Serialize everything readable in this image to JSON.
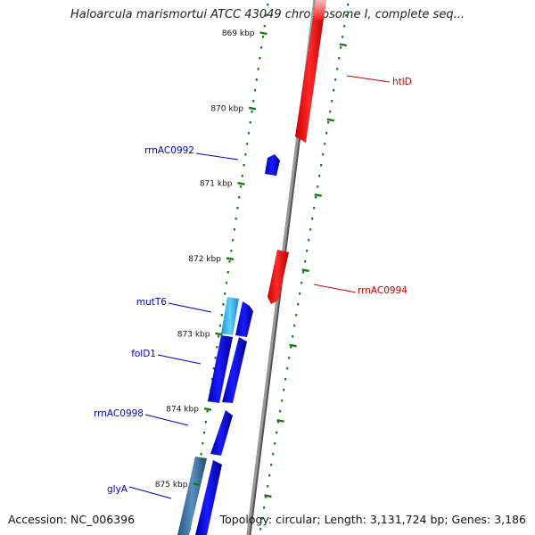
{
  "title": "Haloarcula marismortui ATCC 43049 chromosome I, complete seq...",
  "footer": {
    "accession": "Accession: NC_006396",
    "summary": "Topology: circular; Length: 3,131,724 bp; Genes: 3,186"
  },
  "colors": {
    "reverse_gene": "#0000ee",
    "forward_gene": "#ff0000",
    "reverse_label": "#0000cc",
    "forward_label": "#cc0000",
    "tick": "#1a7a1a",
    "mutT6_gene": "#33bbee",
    "glyA_gene": "#3a6ea5",
    "backbone": "#888888"
  },
  "ticks": [
    {
      "label": "869 kbp",
      "kbp": 869
    },
    {
      "label": "870 kbp",
      "kbp": 870
    },
    {
      "label": "871 kbp",
      "kbp": 871
    },
    {
      "label": "872 kbp",
      "kbp": 872
    },
    {
      "label": "873 kbp",
      "kbp": 873
    },
    {
      "label": "874 kbp",
      "kbp": 874
    },
    {
      "label": "875 kbp",
      "kbp": 875
    }
  ],
  "genes": [
    {
      "name": "htlD",
      "strand": "+"
    },
    {
      "name": "rrnAC0992",
      "strand": "-"
    },
    {
      "name": "rrnAC0994",
      "strand": "+"
    },
    {
      "name": "mutT6",
      "strand": "-"
    },
    {
      "name": "folD1",
      "strand": "-"
    },
    {
      "name": "rrnAC0998",
      "strand": "-"
    },
    {
      "name": "glyA",
      "strand": "-"
    }
  ]
}
